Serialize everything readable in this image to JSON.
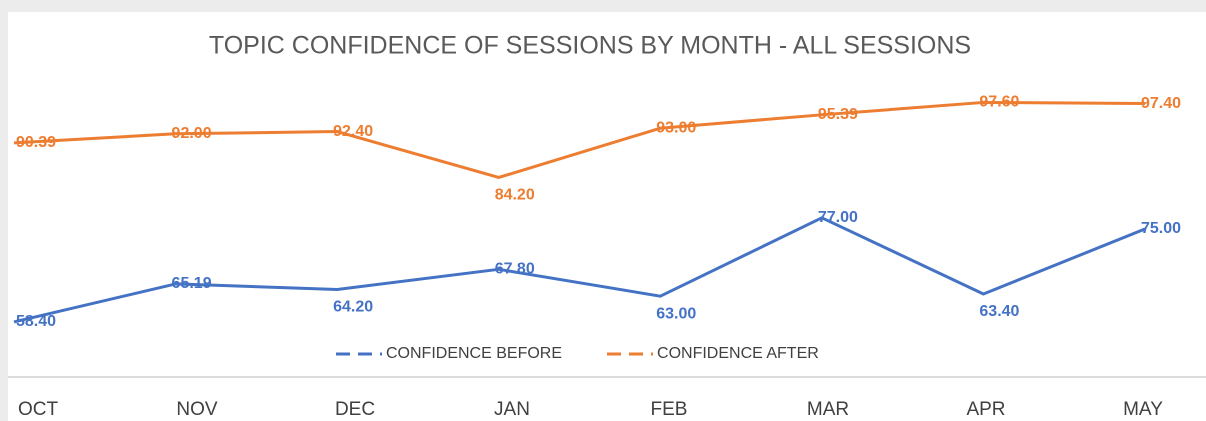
{
  "chart_data": {
    "type": "line",
    "title": "TOPIC CONFIDENCE OF SESSIONS BY MONTH - ALL SESSIONS",
    "categories": [
      "OCT",
      "NOV",
      "DEC",
      "JAN",
      "FEB",
      "MAR",
      "APR",
      "MAY"
    ],
    "series": [
      {
        "name": "CONFIDENCE BEFORE",
        "color": "#4472c4",
        "values": [
          58.4,
          65.19,
          64.2,
          67.8,
          63,
          77,
          63.4,
          75
        ],
        "value_labels": [
          "58.40",
          "65.19",
          "64.20",
          "67.80",
          "63.00",
          "77.00",
          "63.40",
          "75.00"
        ]
      },
      {
        "name": "CONFIDENCE AFTER",
        "color": "#ed7d31",
        "values": [
          90.39,
          92,
          92.4,
          84.2,
          93,
          95.39,
          97.6,
          97.4
        ],
        "value_labels": [
          "90.39",
          "92.00",
          "92.40",
          "84.20",
          "93.00",
          "95.39",
          "97.60",
          "97.40"
        ]
      }
    ],
    "ylim": [
      50,
      100
    ],
    "legend": "bottom"
  }
}
